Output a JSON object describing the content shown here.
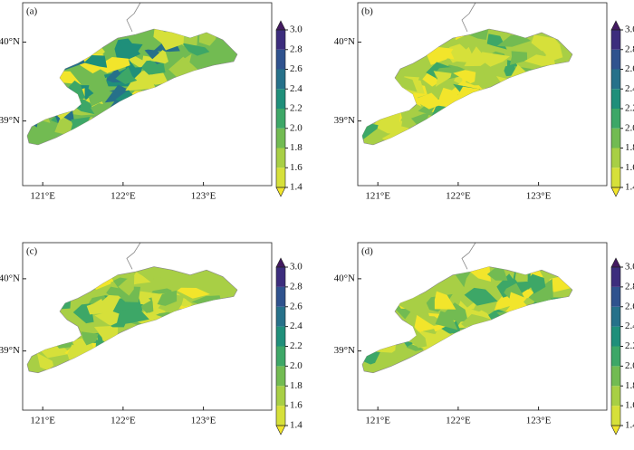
{
  "panels": [
    {
      "label": "(a)"
    },
    {
      "label": "(b)"
    },
    {
      "label": "(c)"
    },
    {
      "label": "(d)"
    }
  ],
  "xlim": [
    120.75,
    123.85
  ],
  "ylim": [
    38.18,
    40.5
  ],
  "xticks": [
    {
      "value": 121,
      "label": "121°E"
    },
    {
      "value": 122,
      "label": "122°E"
    },
    {
      "value": 123,
      "label": "123°E"
    }
  ],
  "yticks": [
    {
      "value": 39,
      "label": "39°N"
    },
    {
      "value": 40,
      "label": "40°N"
    }
  ],
  "colorbar": {
    "ticks": [
      {
        "value": 1.4,
        "label": "1.4"
      },
      {
        "value": 1.6,
        "label": "1.6"
      },
      {
        "value": 1.8,
        "label": "1.8"
      },
      {
        "value": 2.0,
        "label": "2.0"
      },
      {
        "value": 2.2,
        "label": "2.2"
      },
      {
        "value": 2.4,
        "label": "2.4"
      },
      {
        "value": 2.6,
        "label": "2.6"
      },
      {
        "value": 2.8,
        "label": "2.8"
      },
      {
        "value": 3.0,
        "label": "3.0"
      }
    ],
    "colors": [
      "#f2e52b",
      "#d6e03a",
      "#a8cf45",
      "#72bb52",
      "#3da767",
      "#1f8f7a",
      "#26718a",
      "#2f528e",
      "#3c2d7d",
      "#431a61"
    ]
  }
}
